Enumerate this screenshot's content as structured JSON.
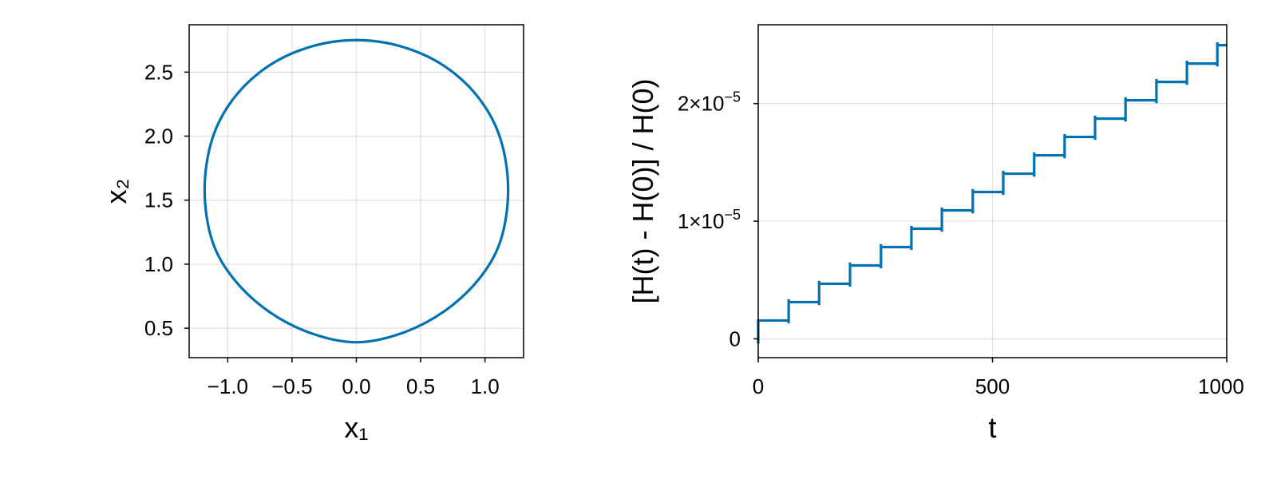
{
  "chart_data": [
    {
      "type": "line",
      "xlabel": "x₁",
      "ylabel": "x₂",
      "xlim": [
        -1.3,
        1.3
      ],
      "ylim": [
        0.27,
        2.87
      ],
      "xticks": [
        -1.0,
        -0.5,
        0.0,
        0.5,
        1.0
      ],
      "xtick_labels": [
        "−1.0",
        "−0.5",
        "0.0",
        "0.5",
        "1.0"
      ],
      "yticks": [
        0.5,
        1.0,
        1.5,
        2.0,
        2.5
      ],
      "ytick_labels": [
        "0.5",
        "1.0",
        "1.5",
        "2.0",
        "2.5"
      ],
      "grid": true,
      "color": "#0072b2",
      "series": [
        {
          "x": [
            0.0,
            0.35,
            0.68,
            0.95,
            1.12,
            1.18,
            1.12,
            0.95,
            0.68,
            0.35,
            0.0,
            -0.35,
            -0.68,
            -0.95,
            -1.12,
            -1.18,
            -1.12,
            -0.95,
            -0.68,
            -0.35,
            0.0
          ],
          "y": [
            2.75,
            2.7,
            2.55,
            2.3,
            1.98,
            1.58,
            1.18,
            0.88,
            0.63,
            0.46,
            0.39,
            0.46,
            0.63,
            0.88,
            1.18,
            1.58,
            1.98,
            2.3,
            2.55,
            2.7,
            2.75
          ]
        }
      ]
    },
    {
      "type": "line",
      "xlabel": "t",
      "ylabel": "[H(t) - H(0)] / H(0)",
      "xlim": [
        0,
        1000
      ],
      "ylim": [
        -1.6e-06,
        2.67e-05
      ],
      "xticks": [
        0,
        500,
        1000
      ],
      "xtick_labels": [
        "0",
        "500",
        "1000"
      ],
      "yticks": [
        0,
        1e-05,
        2e-05
      ],
      "ytick_labels": [
        {
          "mantissa": "0",
          "exponent": ""
        },
        {
          "mantissa": "1×10",
          "exponent": "−5"
        },
        {
          "mantissa": "2×10",
          "exponent": "−5"
        }
      ],
      "grid": true,
      "color": "#0072b2",
      "step_times": [
        0,
        65,
        130,
        196,
        262,
        327,
        392,
        458,
        523,
        589,
        654,
        719,
        784,
        850,
        915,
        980
      ],
      "step_levels": [
        0.0,
        1.56e-06,
        3.12e-06,
        4.68e-06,
        6.24e-06,
        7.8e-06,
        9.36e-06,
        1.092e-05,
        1.248e-05,
        1.404e-05,
        1.56e-05,
        1.716e-05,
        1.872e-05,
        2.028e-05,
        2.184e-05,
        2.34e-05,
        2.496e-05
      ],
      "jump_overshoot": 2.5e-07
    }
  ]
}
